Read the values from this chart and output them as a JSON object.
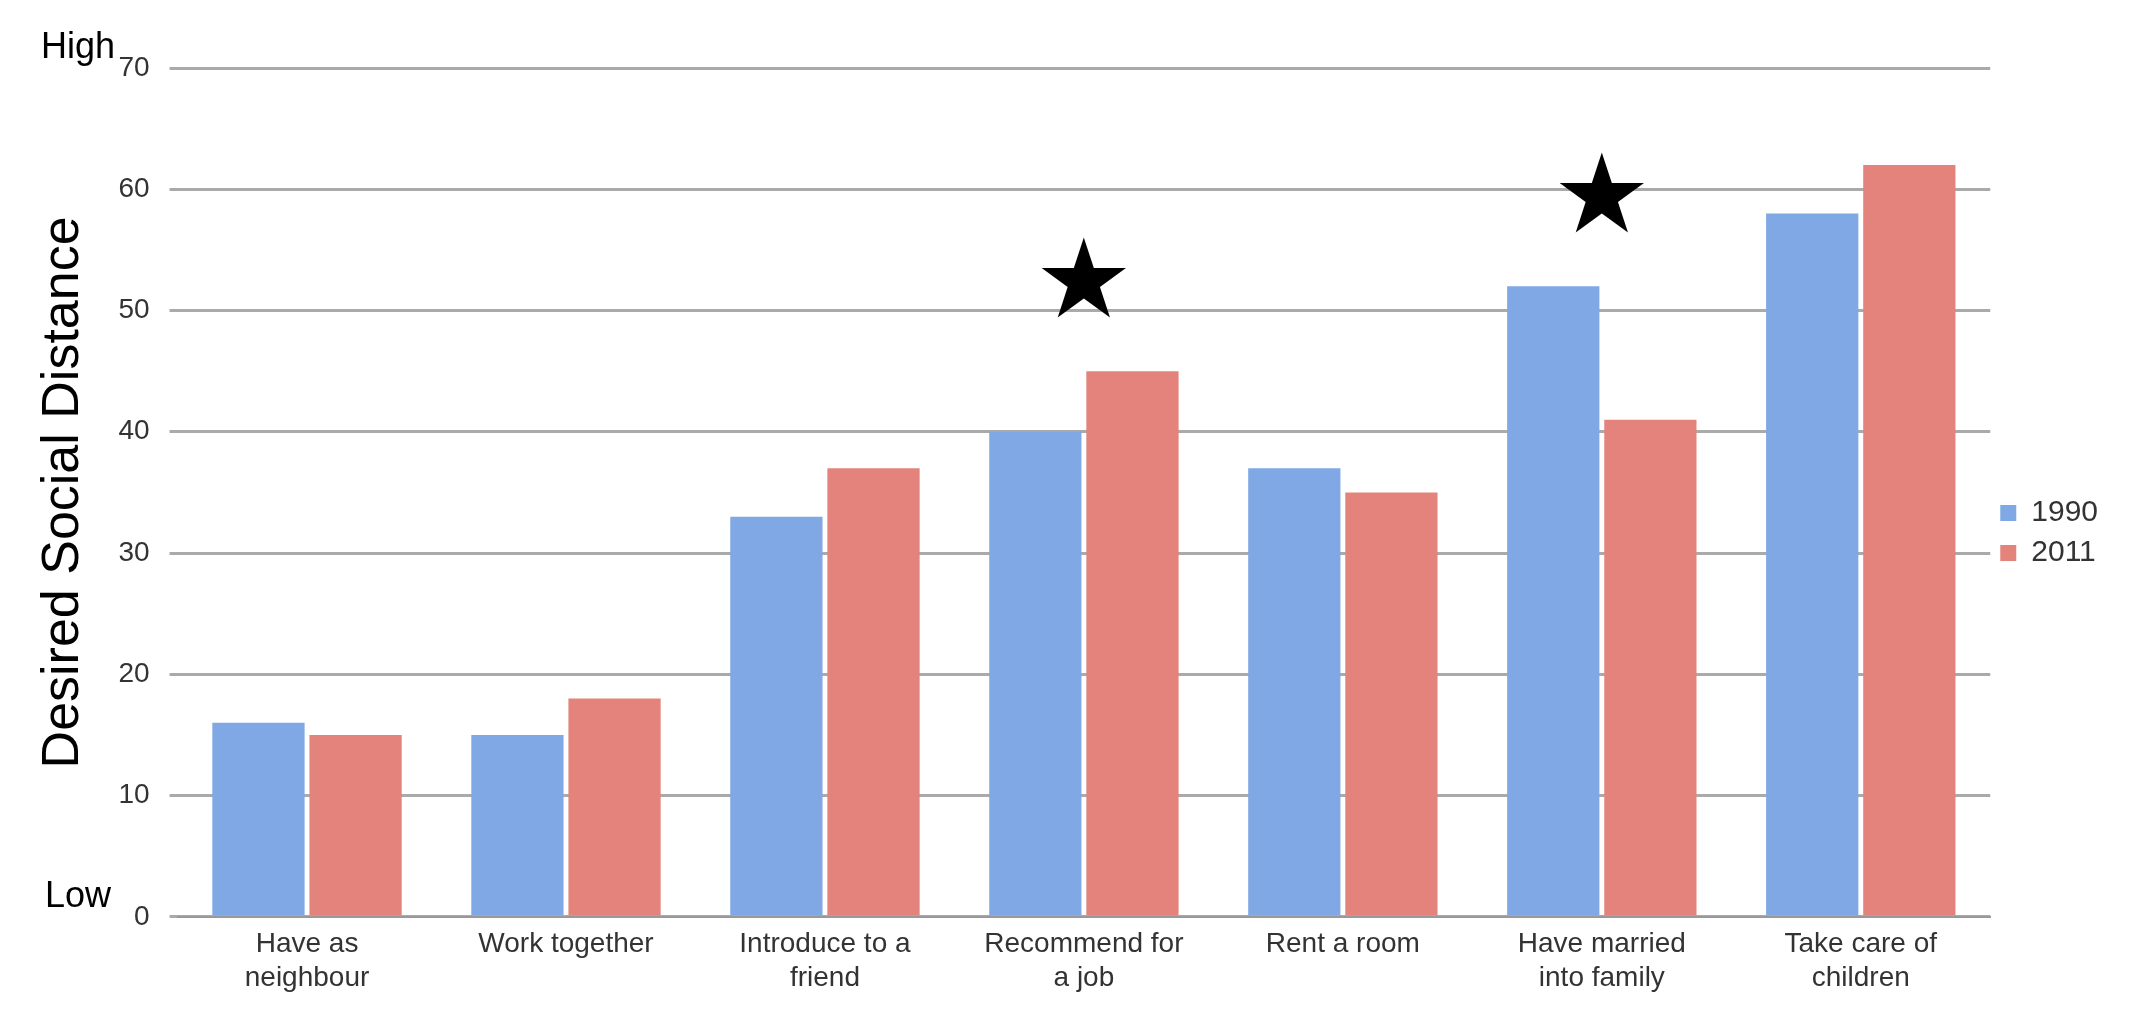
{
  "chart_data": {
    "type": "bar",
    "ylabel": "Desired Social Distance",
    "categories": [
      "Have as neighbour",
      "Work together",
      "Introduce to a friend",
      "Recommend for a job",
      "Rent a room",
      "Have married into family",
      "Take care of children"
    ],
    "series": [
      {
        "name": "1990",
        "color": "#7fa8e4",
        "values": [
          16,
          15,
          33,
          40,
          37,
          52,
          58
        ]
      },
      {
        "name": "2011",
        "color": "#e3837b",
        "values": [
          15,
          18,
          37,
          45,
          35,
          41,
          62
        ]
      }
    ],
    "ylim": [
      0,
      70
    ],
    "yticks": [
      0,
      10,
      20,
      30,
      40,
      50,
      60,
      70
    ],
    "grid": "y",
    "legend": "right",
    "annotations": [
      "High",
      "Low",
      "★",
      "★"
    ]
  }
}
